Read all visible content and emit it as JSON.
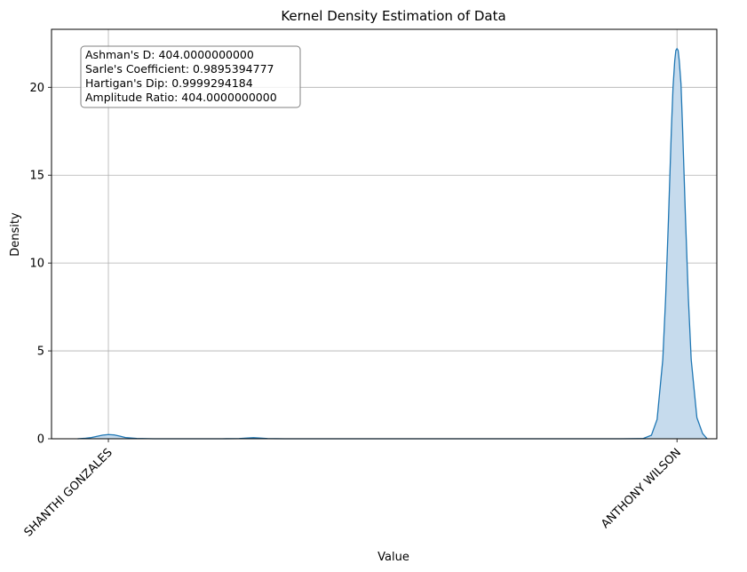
{
  "chart_data": {
    "type": "area",
    "title": "Kernel Density Estimation of Data",
    "xlabel": "Value",
    "ylabel": "Density",
    "xlim": [
      -0.1,
      1.07
    ],
    "ylim": [
      0,
      23.3
    ],
    "grid": true,
    "y_ticks": [
      0,
      5,
      10,
      15,
      20
    ],
    "x_ticks": [
      {
        "value": 0,
        "label": "SHANTHI GONZALES"
      },
      {
        "value": 1,
        "label": "ANTHONY WILSON"
      }
    ],
    "series": [
      {
        "color": "#1f77b4",
        "fill": "#c6dbed",
        "x": [
          -0.054,
          -0.04,
          -0.03,
          -0.02,
          -0.01,
          0.0,
          0.01,
          0.02,
          0.03,
          0.05,
          0.08,
          0.12,
          0.2,
          0.23,
          0.245,
          0.255,
          0.265,
          0.28,
          0.31,
          0.5,
          0.9,
          0.94,
          0.955,
          0.965,
          0.975,
          0.98,
          0.985,
          0.99,
          0.993,
          0.996,
          0.998,
          1.0,
          1.002,
          1.004,
          1.007,
          1.01,
          1.015,
          1.02,
          1.025,
          1.035,
          1.045,
          1.053
        ],
        "values": [
          0.0,
          0.03,
          0.07,
          0.14,
          0.21,
          0.24,
          0.22,
          0.15,
          0.07,
          0.02,
          0.0,
          0.0,
          0.0,
          0.01,
          0.04,
          0.06,
          0.04,
          0.01,
          0.0,
          0.0,
          0.0,
          0.01,
          0.2,
          1.1,
          4.5,
          8.0,
          12.5,
          17.5,
          20.0,
          21.5,
          22.1,
          22.2,
          22.1,
          21.5,
          20.2,
          17.5,
          12.5,
          8.0,
          4.5,
          1.2,
          0.3,
          0.0
        ]
      }
    ]
  },
  "annotation": {
    "lines": [
      "Ashman's D: 404.0000000000",
      "Sarle's Coefficient: 0.9895394777",
      "Hartigan's Dip: 0.9999294184",
      "Amplitude Ratio: 404.0000000000"
    ]
  }
}
